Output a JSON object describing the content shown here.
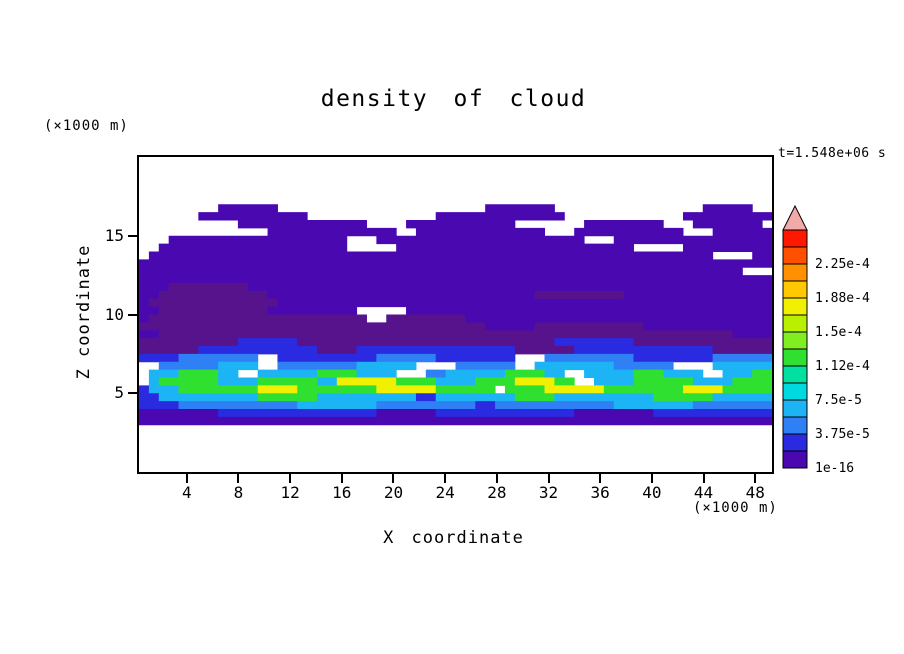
{
  "title": "density of cloud",
  "time_label": "t=1.548e+06 s",
  "axes": {
    "x_label": "X coordinate",
    "x_unit": "(×1000 m)",
    "y_label": "Z coordinate",
    "y_unit": "(×1000 m)",
    "x_ticks": [
      4,
      8,
      12,
      16,
      20,
      24,
      28,
      32,
      36,
      40,
      44,
      48
    ],
    "y_ticks": [
      5,
      10,
      15
    ],
    "x_range": [
      0.3,
      49.3
    ],
    "z_range": [
      0,
      20
    ]
  },
  "colorbar": {
    "labels_top_to_bottom": [
      "2.25e-4",
      "1.88e-4",
      "1.5e-4",
      "1.12e-4",
      "7.5e-5",
      "3.75e-5",
      "1e-16"
    ],
    "segment_colors_bottom_to_top": [
      "#4a09b0",
      "#2a2ae0",
      "#2f7ff5",
      "#1db4f5",
      "#00d9e0",
      "#00e0a0",
      "#30e030",
      "#80ee20",
      "#b8f000",
      "#f0f000",
      "#ffc800",
      "#ff9000",
      "#ff5000",
      "#ff1800"
    ],
    "overflow_color": "#f2a9a9"
  },
  "chart_data": {
    "type": "heatmap",
    "title": "density of cloud",
    "xlabel": "X coordinate (×1000 m)",
    "ylabel": "Z coordinate (×1000 m)",
    "time": "t=1.548e+06 s",
    "x_range": [
      0.3,
      49.3
    ],
    "z_range": [
      0,
      20
    ],
    "level_boundaries": [
      "1e-16",
      "3.75e-5",
      "7.5e-5",
      "1.12e-4",
      "1.5e-4",
      "1.88e-4",
      "2.25e-4"
    ],
    "palette": {
      "1": "#4a09b0",
      "2": "#56138c",
      "3": "#2a2ae0",
      "4": "#2f7ff5",
      "5": "#1db4f5",
      "6": "#00d9e0",
      "7": "#30e030",
      "8": "#80ee20",
      "9": "#f0f000",
      "A": "#ffc800"
    },
    "grid_cols": 64,
    "grid_rows": 40,
    "grid_rle_rows_top_to_bottom": [
      "64:0",
      "64:0",
      "64:0",
      "64:0",
      "64:0",
      "64:0",
      "8:0,6:1,21:0,7:1,15:0,5:1,2:0",
      "6:0,11:1,13:0,13:1,12:0,9:1",
      "10:0,13:1,4:0,11:1,7:0,8:1,3:0,7:1,1:0",
      "13:0,13:1,2:0,13:1,3:0,11:1,3:0,6:1",
      "3:0,18:1,3:0,21:1,3:0,16:1",
      "2:0,19:1,5:0,24:1,5:0,9:1",
      "1:0,57:1,4:0,2:1",
      "64:1",
      "61:1,3:0",
      "64:1",
      "3:1,8:2,53:1",
      "2:1,11:2,27:1,9:2,15:1",
      "1:1,13:2,50:1",
      "2:1,11:2,9:1,5:0,37:1",
      "1:1,22:2,2:0,8:2,31:1",
      "35:2,5:1,11:2,13:1",
      "2:1,58:2,4:1",
      "10:2,6:3,26:2,8:3,14:2",
      "6:2,12:3,4:2,16:3,6:2,14:3,6:2",
      "4:3,8:4,2:0,10:3,6:4,8:3,3:0,9:4,8:3,6:4",
      "2:0,6:4,4:5,2:0,8:4,6:5,4:0,6:4,2:0,8:5,6:4,4:0,6:5",
      "1:0,3:5,4:7,2:5,2:0,6:5,4:7,4:5,3:0,2:4,6:5,4:7,2:5,2:0,5:5,3:7,4:5,2:0,3:5,2:7",
      "1:0,1:5,6:7,4:5,6:7,2:5,6:9,4:7,4:5,4:7,4:9,2:7,2:0,4:5,6:7,4:5,4:7",
      "1:3,3:5,8:7,4:9,8:7,6:9,6:7,1:0,4:7,6:9,8:7,4:9,5:7",
      "2:3,10:5,6:7,10:5,2:3,8:5,4:7,10:5,6:7,6:5",
      "4:3,12:4,8:5,10:4,2:3,12:4,8:5,8:4",
      "8:1,16:3,6:1,14:3,8:1,12:3",
      "64:1",
      "64:0",
      "64:0",
      "64:0",
      "64:0",
      "64:0",
      "64:0"
    ]
  }
}
